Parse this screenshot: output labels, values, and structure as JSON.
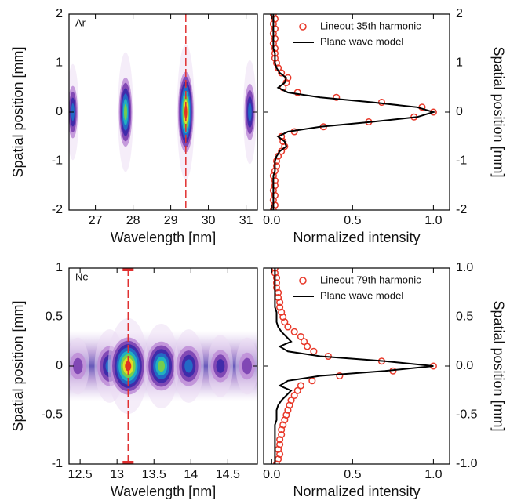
{
  "chart_data": [
    {
      "type": "heatmap",
      "annotation": "Ar",
      "x": [
        26.4,
        27.8,
        29.4,
        31.1
      ],
      "values": [
        0.5,
        0.8,
        1.0,
        0.6
      ],
      "lineout_x": 29.4,
      "xlim": [
        26.3,
        31.3
      ],
      "xticks": [
        27,
        28,
        29,
        30,
        31
      ],
      "ylim": [
        -2,
        2
      ],
      "yticks": [
        -2,
        -1,
        0,
        1,
        2
      ],
      "xlabel": "Wavelength [nm]",
      "ylabel": "Spatial position [mm]"
    },
    {
      "type": "line",
      "y": [
        -2,
        -1.9,
        -1.8,
        -1.7,
        -1.6,
        -1.5,
        -1.4,
        -1.3,
        -1.2,
        -1.1,
        -1,
        -0.9,
        -0.8,
        -0.7,
        -0.6,
        -0.5,
        -0.4,
        -0.3,
        -0.2,
        -0.1,
        0,
        0.1,
        0.2,
        0.3,
        0.4,
        0.5,
        0.6,
        0.7,
        0.8,
        0.9,
        1,
        1.1,
        1.2,
        1.3,
        1.4,
        1.5,
        1.6,
        1.7,
        1.8,
        1.9,
        2
      ],
      "series": [
        {
          "name": "Lineout 35th harmonic",
          "color": "#e8392a",
          "marker": "circle",
          "values": [
            0.01,
            0.02,
            0.01,
            0.02,
            0.01,
            0.02,
            0.02,
            0.01,
            0.02,
            0.03,
            0.03,
            0.04,
            0.06,
            0.08,
            0.07,
            0.06,
            0.14,
            0.32,
            0.6,
            0.88,
            1.0,
            0.93,
            0.68,
            0.4,
            0.16,
            0.07,
            0.09,
            0.1,
            0.06,
            0.04,
            0.03,
            0.02,
            0.02,
            0.02,
            0.01,
            0.02,
            0.01,
            0.02,
            0.01,
            0.02,
            0.01
          ]
        },
        {
          "name": "Plane wave model",
          "color": "#000000",
          "marker": "line",
          "values": [
            0.01,
            0.01,
            0.01,
            0.01,
            0.01,
            0.01,
            0.01,
            0.01,
            0.02,
            0.02,
            0.02,
            0.03,
            0.05,
            0.09,
            0.08,
            0.04,
            0.1,
            0.3,
            0.62,
            0.9,
            1.0,
            0.9,
            0.62,
            0.3,
            0.1,
            0.04,
            0.08,
            0.09,
            0.05,
            0.03,
            0.02,
            0.02,
            0.02,
            0.01,
            0.01,
            0.01,
            0.01,
            0.01,
            0.01,
            0.01,
            0.01
          ]
        }
      ],
      "xlim": [
        -0.05,
        1.1
      ],
      "xticks": [
        {
          "value": 0,
          "label": "0.0"
        },
        0.5,
        {
          "value": 1,
          "label": "1.0"
        }
      ],
      "ylim": [
        -2,
        2
      ],
      "yticks": [
        -2,
        -1,
        0,
        1,
        2
      ],
      "xlabel": "Normalized intensity",
      "ylabel": "Spatial position [mm]",
      "legend": "upper right"
    },
    {
      "type": "heatmap",
      "annotation": "Ne",
      "x": [
        12.47,
        12.9,
        13.15,
        13.6,
        13.97,
        14.4,
        14.76
      ],
      "values": [
        0.3,
        0.6,
        1.0,
        0.8,
        0.6,
        0.4,
        0.3
      ],
      "lineout_x": 13.15,
      "xlim": [
        12.35,
        14.9
      ],
      "xticks": [
        12.5,
        13,
        13.5,
        14,
        14.5
      ],
      "ylim": [
        -1,
        1
      ],
      "yticks": [
        -1,
        -0.5,
        0,
        0.5,
        1
      ],
      "xlabel": "Wavelength [nm]",
      "ylabel": "Spatial position [mm]"
    },
    {
      "type": "line",
      "y": [
        -1,
        -0.95,
        -0.9,
        -0.85,
        -0.8,
        -0.75,
        -0.7,
        -0.65,
        -0.6,
        -0.55,
        -0.5,
        -0.45,
        -0.4,
        -0.35,
        -0.3,
        -0.25,
        -0.2,
        -0.15,
        -0.1,
        -0.05,
        0,
        0.05,
        0.1,
        0.15,
        0.2,
        0.25,
        0.3,
        0.35,
        0.4,
        0.45,
        0.5,
        0.55,
        0.6,
        0.65,
        0.7,
        0.75,
        0.8,
        0.85,
        0.9,
        0.95,
        1
      ],
      "series": [
        {
          "name": "Lineout 79th harmonic",
          "color": "#e8392a",
          "marker": "circle",
          "values": [
            0.03,
            0.04,
            0.05,
            0.04,
            0.05,
            0.05,
            0.06,
            0.06,
            0.07,
            0.08,
            0.09,
            0.1,
            0.11,
            0.12,
            0.14,
            0.16,
            0.18,
            0.25,
            0.42,
            0.75,
            1.0,
            0.68,
            0.35,
            0.26,
            0.22,
            0.2,
            0.18,
            0.14,
            0.1,
            0.08,
            0.07,
            0.06,
            0.05,
            0.05,
            0.04,
            0.04,
            0.03,
            0.03,
            0.03,
            0.02,
            0.02
          ]
        },
        {
          "name": "Plane wave model",
          "color": "#000000",
          "marker": "line",
          "values": [
            0.02,
            0.02,
            0.02,
            0.02,
            0.02,
            0.02,
            0.02,
            0.02,
            0.02,
            0.03,
            0.03,
            0.03,
            0.04,
            0.06,
            0.09,
            0.12,
            0.05,
            0.1,
            0.3,
            0.7,
            1.0,
            0.7,
            0.3,
            0.1,
            0.05,
            0.12,
            0.09,
            0.06,
            0.04,
            0.03,
            0.03,
            0.03,
            0.02,
            0.02,
            0.02,
            0.02,
            0.02,
            0.02,
            0.02,
            0.02,
            0.02
          ]
        }
      ],
      "xlim": [
        -0.05,
        1.1
      ],
      "xticks": [
        {
          "value": 0,
          "label": "0.0"
        },
        0.5,
        {
          "value": 1,
          "label": "1.0"
        }
      ],
      "ylim": [
        -1,
        1
      ],
      "yticks": [
        {
          "value": -1,
          "label": "-1.0"
        },
        -0.5,
        {
          "value": 0,
          "label": "0.0"
        },
        0.5,
        {
          "value": 1,
          "label": "1.0"
        }
      ],
      "xlabel": "Normalized intensity",
      "ylabel": "Spatial position [mm]",
      "legend": "upper right"
    }
  ]
}
